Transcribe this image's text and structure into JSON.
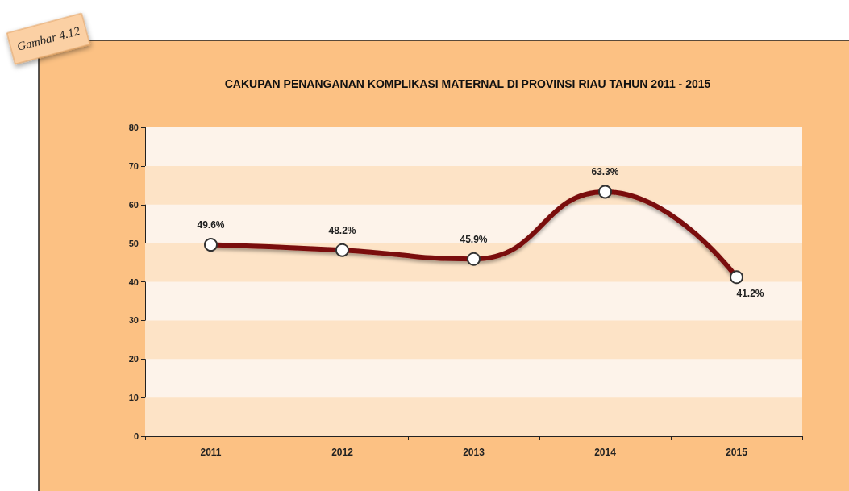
{
  "chart_data": {
    "type": "line",
    "title": "CAKUPAN PENANGANAN KOMPLIKASI MATERNAL DI PROVINSI RIAU TAHUN 2011 - 2015",
    "categories": [
      "2011",
      "2012",
      "2013",
      "2014",
      "2015"
    ],
    "series": [
      {
        "color": "#7a0c0c",
        "values": [
          49.6,
          48.2,
          45.9,
          63.3,
          41.2
        ],
        "value_labels": [
          "49.6%",
          "48.2%",
          "45.9%",
          "63.3%",
          "41.2%"
        ]
      }
    ],
    "ylim": [
      0,
      80
    ],
    "yticks": [
      0,
      10,
      20,
      30,
      40,
      50,
      60,
      70,
      80
    ],
    "bands": [
      {
        "axis": "y",
        "from": 0,
        "to": 10,
        "color": "#fde3c6"
      },
      {
        "axis": "y",
        "from": 20,
        "to": 30,
        "color": "#fde3c6"
      },
      {
        "axis": "y",
        "from": 40,
        "to": 50,
        "color": "#fde3c6"
      },
      {
        "axis": "y",
        "from": 60,
        "to": 70,
        "color": "#fde3c6"
      }
    ],
    "marker": "circle",
    "line_style": "solid",
    "annotations": [
      "Gambar 4.12"
    ]
  }
}
